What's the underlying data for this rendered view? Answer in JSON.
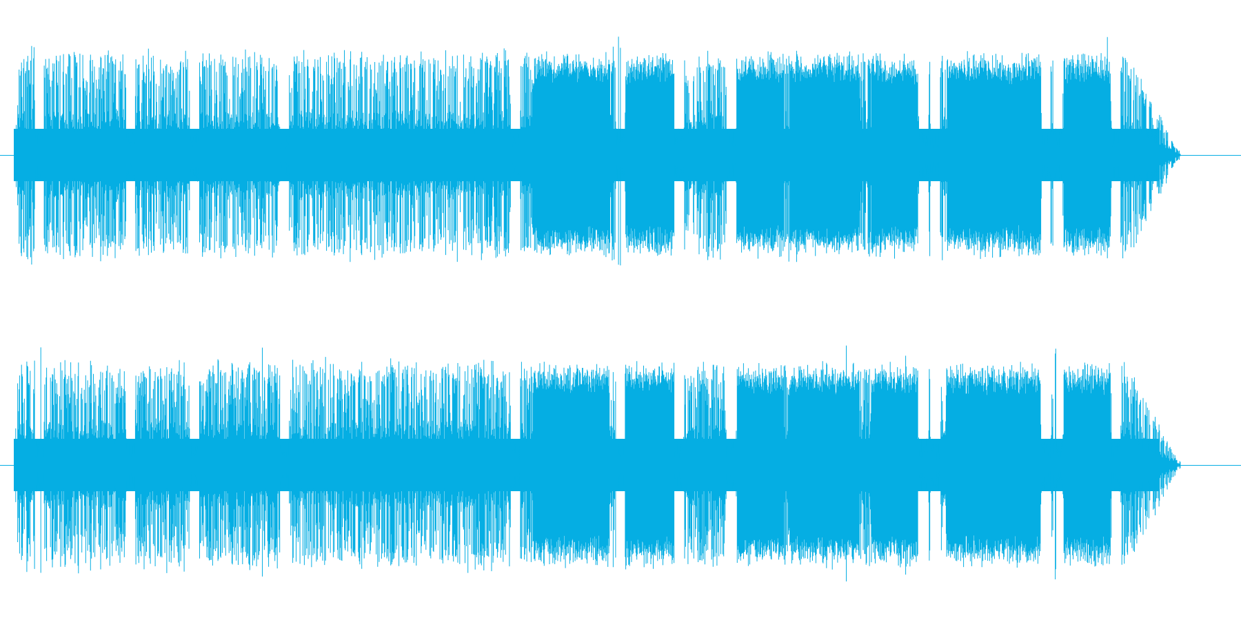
{
  "waveform": {
    "channel_count": 2,
    "color": "#05aee3",
    "background": "#ffffff",
    "channels": [
      {
        "seed": 17,
        "loud_sections": [
          {
            "from": 0.445,
            "to": 0.51
          },
          {
            "from": 0.525,
            "to": 0.568
          },
          {
            "from": 0.62,
            "to": 0.66
          },
          {
            "from": 0.665,
            "to": 0.725
          },
          {
            "from": 0.735,
            "to": 0.775
          },
          {
            "from": 0.8,
            "to": 0.88
          },
          {
            "from": 0.9,
            "to": 0.94
          }
        ],
        "quiet_gaps": [
          0.022,
          0.1,
          0.155,
          0.232,
          0.43,
          0.52,
          0.57,
          0.615,
          0.78,
          0.79,
          0.885,
          0.895,
          0.945
        ]
      },
      {
        "seed": 29,
        "loud_sections": [
          {
            "from": 0.445,
            "to": 0.51
          },
          {
            "from": 0.525,
            "to": 0.568
          },
          {
            "from": 0.62,
            "to": 0.66
          },
          {
            "from": 0.665,
            "to": 0.725
          },
          {
            "from": 0.735,
            "to": 0.775
          },
          {
            "from": 0.8,
            "to": 0.88
          },
          {
            "from": 0.9,
            "to": 0.94
          }
        ],
        "quiet_gaps": [
          0.022,
          0.1,
          0.155,
          0.232,
          0.43,
          0.52,
          0.57,
          0.615,
          0.78,
          0.79,
          0.885,
          0.895,
          0.945
        ]
      }
    ]
  }
}
